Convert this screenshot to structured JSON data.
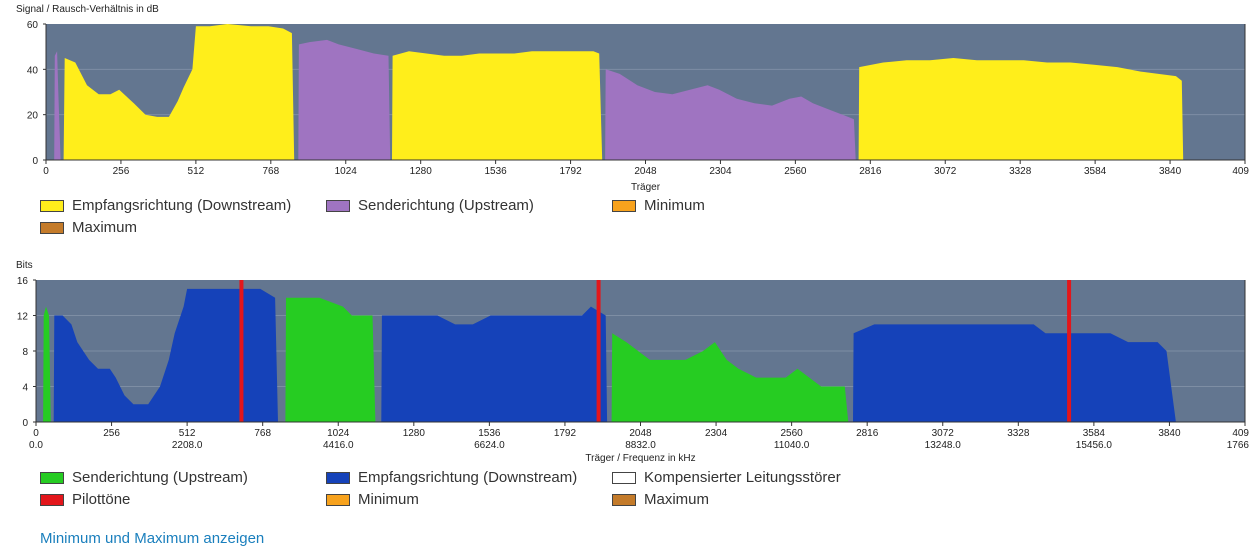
{
  "colors": {
    "background": "#ffffff",
    "plot_bg": "#637690",
    "grid": "#7e8ea4",
    "yellow": "#ffee1b",
    "purple": "#9f74c1",
    "green": "#26cc22",
    "blue": "#1542b9",
    "red": "#e3161b",
    "white": "#ffffff",
    "orange": "#f7a21d",
    "brown": "#c47b2a",
    "link": "#1a7fbd"
  },
  "chart_data": [
    {
      "type": "area",
      "title": "Signal / Rausch-Verhältnis in dB",
      "xlabel": "Träger",
      "ylabel": "Signal / Rausch-Verhältnis in dB",
      "xlim": [
        0,
        4096
      ],
      "ylim": [
        0,
        60
      ],
      "xticks": [
        0,
        256,
        512,
        768,
        1024,
        1280,
        1536,
        1792,
        2048,
        2304,
        2560,
        2816,
        3072,
        3328,
        3584,
        3840
      ],
      "xtick_labels": [
        "0",
        "256",
        "512",
        "768",
        "1024",
        "1280",
        "1536",
        "1792",
        "2048",
        "2304",
        "2560",
        "2816",
        "3072",
        "3328",
        "3584",
        "3840"
      ],
      "x_end_label": "409",
      "yticks": [
        0,
        20,
        40,
        60
      ],
      "ytick_labels": [
        "0",
        "20",
        "40",
        "60"
      ],
      "series": [
        {
          "name": "Senderichtung (Upstream)",
          "color_key": "purple",
          "points": [
            [
              28,
              0
            ],
            [
              30,
              46
            ],
            [
              38,
              48
            ],
            [
              42,
              30
            ],
            [
              50,
              0
            ]
          ]
        },
        {
          "name": "Empfangsrichtung (Downstream)",
          "color_key": "yellow",
          "points": [
            [
              60,
              0
            ],
            [
              64,
              45
            ],
            [
              100,
              43
            ],
            [
              140,
              33
            ],
            [
              180,
              29
            ],
            [
              220,
              29
            ],
            [
              250,
              31
            ],
            [
              300,
              25
            ],
            [
              340,
              20
            ],
            [
              380,
              19
            ],
            [
              420,
              19
            ],
            [
              450,
              26
            ],
            [
              470,
              32
            ],
            [
              500,
              40
            ],
            [
              512,
              59
            ],
            [
              560,
              59
            ],
            [
              620,
              60
            ],
            [
              700,
              59
            ],
            [
              760,
              59
            ],
            [
              810,
              58
            ],
            [
              840,
              56
            ],
            [
              848,
              0
            ]
          ]
        },
        {
          "name": "Senderichtung (Upstream)",
          "color_key": "purple",
          "points": [
            [
              862,
              0
            ],
            [
              864,
              51
            ],
            [
              900,
              52
            ],
            [
              960,
              53
            ],
            [
              1000,
              51
            ],
            [
              1060,
              49
            ],
            [
              1120,
              47
            ],
            [
              1170,
              46
            ],
            [
              1176,
              0
            ]
          ]
        },
        {
          "name": "Empfangsrichtung (Downstream)",
          "color_key": "yellow",
          "points": [
            [
              1182,
              0
            ],
            [
              1184,
              46
            ],
            [
              1240,
              48
            ],
            [
              1300,
              47
            ],
            [
              1360,
              46
            ],
            [
              1420,
              46
            ],
            [
              1480,
              47
            ],
            [
              1540,
              47
            ],
            [
              1600,
              47
            ],
            [
              1660,
              48
            ],
            [
              1740,
              48
            ],
            [
              1800,
              48
            ],
            [
              1870,
              48
            ],
            [
              1890,
              47
            ],
            [
              1900,
              0
            ]
          ]
        },
        {
          "name": "Senderichtung (Upstream)",
          "color_key": "purple",
          "points": [
            [
              1910,
              0
            ],
            [
              1912,
              40
            ],
            [
              1960,
              38
            ],
            [
              2020,
              33
            ],
            [
              2080,
              30
            ],
            [
              2140,
              29
            ],
            [
              2200,
              31
            ],
            [
              2260,
              33
            ],
            [
              2300,
              31
            ],
            [
              2360,
              27
            ],
            [
              2420,
              25
            ],
            [
              2480,
              24
            ],
            [
              2540,
              27
            ],
            [
              2580,
              28
            ],
            [
              2620,
              25
            ],
            [
              2680,
              22
            ],
            [
              2740,
              19
            ],
            [
              2760,
              18
            ],
            [
              2766,
              0
            ]
          ]
        },
        {
          "name": "Empfangsrichtung (Downstream)",
          "color_key": "yellow",
          "points": [
            [
              2776,
              0
            ],
            [
              2778,
              41
            ],
            [
              2860,
              43
            ],
            [
              2940,
              44
            ],
            [
              3020,
              44
            ],
            [
              3100,
              45
            ],
            [
              3180,
              44
            ],
            [
              3260,
              44
            ],
            [
              3340,
              44
            ],
            [
              3420,
              43
            ],
            [
              3500,
              43
            ],
            [
              3580,
              42
            ],
            [
              3660,
              41
            ],
            [
              3740,
              39
            ],
            [
              3800,
              38
            ],
            [
              3860,
              37
            ],
            [
              3880,
              35
            ],
            [
              3885,
              0
            ]
          ]
        }
      ],
      "legend": [
        {
          "label": "Empfangsrichtung (Downstream)",
          "color_key": "yellow"
        },
        {
          "label": "Senderichtung (Upstream)",
          "color_key": "purple"
        },
        {
          "label": "Minimum",
          "color_key": "orange"
        },
        {
          "label": "Maximum",
          "color_key": "brown"
        }
      ]
    },
    {
      "type": "area",
      "title": "Bits",
      "xlabel": "Träger / Frequenz in kHz",
      "ylabel": "Bits",
      "xlim": [
        0,
        4096
      ],
      "ylim": [
        0,
        16
      ],
      "xticks": [
        0,
        256,
        512,
        768,
        1024,
        1280,
        1536,
        1792,
        2048,
        2304,
        2560,
        2816,
        3072,
        3328,
        3584,
        3840
      ],
      "xtick_labels": [
        "0",
        "256",
        "512",
        "768",
        "1024",
        "1280",
        "1536",
        "1792",
        "2048",
        "2304",
        "2560",
        "2816",
        "3072",
        "3328",
        "3584",
        "3840"
      ],
      "x_end_label": "409",
      "freq_tick_labels": [
        "0.0",
        "2208.0",
        "4416.0",
        "6624.0",
        "8832.0",
        "11040.0",
        "13248.0",
        "15456.0"
      ],
      "freq_end_label": "1766",
      "yticks": [
        0,
        4,
        8,
        12,
        16
      ],
      "ytick_labels": [
        "0",
        "4",
        "8",
        "12",
        "16"
      ],
      "pilot_tones": [
        696,
        1906,
        3500
      ],
      "series": [
        {
          "name": "Senderichtung (Upstream)",
          "color_key": "green",
          "points": [
            [
              24,
              0
            ],
            [
              26,
              12
            ],
            [
              34,
              13
            ],
            [
              44,
              12
            ],
            [
              50,
              0
            ]
          ]
        },
        {
          "name": "Empfangsrichtung (Downstream)",
          "color_key": "blue",
          "points": [
            [
              60,
              0
            ],
            [
              62,
              12
            ],
            [
              90,
              12
            ],
            [
              120,
              11
            ],
            [
              140,
              9
            ],
            [
              160,
              8
            ],
            [
              180,
              7
            ],
            [
              210,
              6
            ],
            [
              250,
              6
            ],
            [
              270,
              5
            ],
            [
              300,
              3
            ],
            [
              330,
              2
            ],
            [
              380,
              2
            ],
            [
              420,
              4
            ],
            [
              450,
              7
            ],
            [
              470,
              10
            ],
            [
              500,
              13
            ],
            [
              512,
              15
            ],
            [
              600,
              15
            ],
            [
              700,
              15
            ],
            [
              760,
              15
            ],
            [
              810,
              14
            ],
            [
              820,
              0
            ]
          ]
        },
        {
          "name": "Senderichtung (Upstream)",
          "color_key": "green",
          "points": [
            [
              845,
              0
            ],
            [
              847,
              14
            ],
            [
              900,
              14
            ],
            [
              960,
              14
            ],
            [
              1040,
              13
            ],
            [
              1070,
              12
            ],
            [
              1140,
              12
            ],
            [
              1150,
              0
            ]
          ]
        },
        {
          "name": "Empfangsrichtung (Downstream)",
          "color_key": "blue",
          "points": [
            [
              1170,
              0
            ],
            [
              1172,
              12
            ],
            [
              1260,
              12
            ],
            [
              1300,
              12
            ],
            [
              1360,
              12
            ],
            [
              1420,
              11
            ],
            [
              1480,
              11
            ],
            [
              1540,
              12
            ],
            [
              1600,
              12
            ],
            [
              1660,
              12
            ],
            [
              1720,
              12
            ],
            [
              1800,
              12
            ],
            [
              1850,
              12
            ],
            [
              1880,
              13
            ],
            [
              1930,
              12
            ],
            [
              1935,
              0
            ]
          ]
        },
        {
          "name": "Senderichtung (Upstream)",
          "color_key": "green",
          "points": [
            [
              1950,
              0
            ],
            [
              1952,
              10
            ],
            [
              2000,
              9
            ],
            [
              2040,
              8
            ],
            [
              2080,
              7
            ],
            [
              2140,
              7
            ],
            [
              2200,
              7
            ],
            [
              2260,
              8
            ],
            [
              2300,
              9
            ],
            [
              2340,
              7
            ],
            [
              2380,
              6
            ],
            [
              2440,
              5
            ],
            [
              2500,
              5
            ],
            [
              2540,
              5
            ],
            [
              2580,
              6
            ],
            [
              2620,
              5
            ],
            [
              2660,
              4
            ],
            [
              2700,
              4
            ],
            [
              2740,
              4
            ],
            [
              2752,
              0
            ]
          ]
        },
        {
          "name": "Empfangsrichtung (Downstream)",
          "color_key": "blue",
          "points": [
            [
              2768,
              0
            ],
            [
              2770,
              10
            ],
            [
              2840,
              11
            ],
            [
              2920,
              11
            ],
            [
              3000,
              11
            ],
            [
              3080,
              11
            ],
            [
              3160,
              11
            ],
            [
              3240,
              11
            ],
            [
              3320,
              11
            ],
            [
              3380,
              11
            ],
            [
              3420,
              10
            ],
            [
              3480,
              10
            ],
            [
              3560,
              10
            ],
            [
              3640,
              10
            ],
            [
              3700,
              9
            ],
            [
              3760,
              9
            ],
            [
              3800,
              9
            ],
            [
              3830,
              8
            ],
            [
              3862,
              0
            ]
          ]
        }
      ],
      "legend": [
        {
          "label": "Senderichtung (Upstream)",
          "color_key": "green"
        },
        {
          "label": "Empfangsrichtung (Downstream)",
          "color_key": "blue"
        },
        {
          "label": "Kompensierter Leitungsstörer",
          "color_key": "white"
        },
        {
          "label": "Pilottöne",
          "color_key": "red"
        },
        {
          "label": "Minimum",
          "color_key": "orange"
        },
        {
          "label": "Maximum",
          "color_key": "brown"
        }
      ]
    }
  ],
  "footer": {
    "link_label": "Minimum und Maximum anzeigen"
  }
}
